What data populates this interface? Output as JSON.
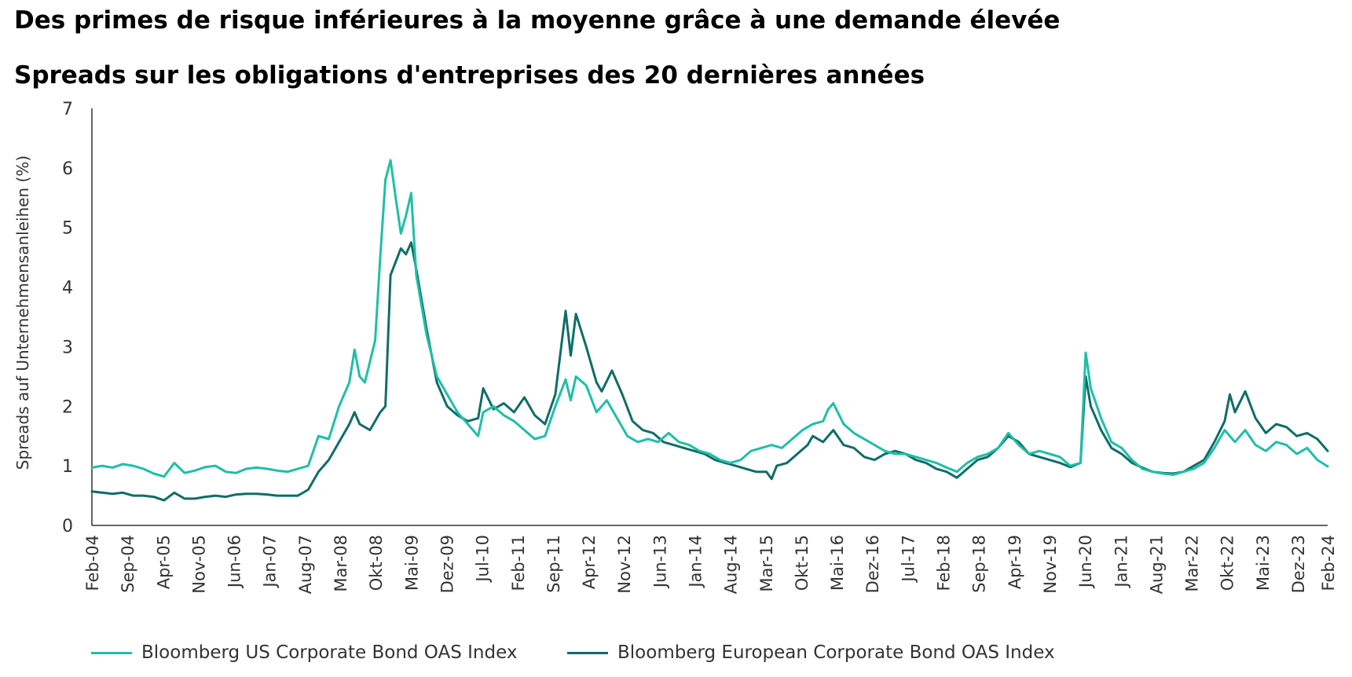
{
  "title": "Des primes de risque inférieures à la moyenne grâce à une demande élevée",
  "subtitle": "Spreads sur les obligations d'entreprises des 20 dernières années",
  "colors": {
    "us": "#1fbfa5",
    "eu": "#0f6d68",
    "axis": "#333333"
  },
  "chart_data": {
    "type": "line",
    "title": "Spreads sur les obligations d'entreprises des 20 dernières années",
    "ylabel": "Spreads auf Unternehmensanleihen (%)",
    "xlabel": "",
    "ylim": [
      0,
      7
    ],
    "yticks": [
      0,
      1,
      2,
      3,
      4,
      5,
      6,
      7
    ],
    "xlim": [
      "2004-02",
      "2024-02"
    ],
    "x_tick_labels": [
      "Feb-04",
      "Sep-04",
      "Apr-05",
      "Nov-05",
      "Jun-06",
      "Jan-07",
      "Aug-07",
      "Mar-08",
      "Okt-08",
      "Mai-09",
      "Dez-09",
      "Jul-10",
      "Feb-11",
      "Sep-11",
      "Apr-12",
      "Nov-12",
      "Jun-13",
      "Jan-14",
      "Aug-14",
      "Mar-15",
      "Okt-15",
      "Mai-16",
      "Dez-16",
      "Jul-17",
      "Feb-18",
      "Sep-18",
      "Apr-19",
      "Nov-19",
      "Jun-20",
      "Jan-21",
      "Aug-21",
      "Mar-22",
      "Okt-22",
      "Mai-23",
      "Dez-23",
      "Feb-24"
    ],
    "grid": false,
    "legend_position": "bottom",
    "series": [
      {
        "name": "Bloomberg US Corporate Bond OAS Index",
        "color": "#1fbfa5",
        "points": [
          [
            "2004-02",
            0.97
          ],
          [
            "2004-04",
            1.0
          ],
          [
            "2004-06",
            0.97
          ],
          [
            "2004-08",
            1.03
          ],
          [
            "2004-10",
            1.0
          ],
          [
            "2004-12",
            0.95
          ],
          [
            "2005-02",
            0.87
          ],
          [
            "2005-04",
            0.82
          ],
          [
            "2005-06",
            1.05
          ],
          [
            "2005-08",
            0.88
          ],
          [
            "2005-10",
            0.92
          ],
          [
            "2005-12",
            0.98
          ],
          [
            "2006-02",
            1.0
          ],
          [
            "2006-04",
            0.9
          ],
          [
            "2006-06",
            0.88
          ],
          [
            "2006-08",
            0.95
          ],
          [
            "2006-10",
            0.97
          ],
          [
            "2006-12",
            0.95
          ],
          [
            "2007-02",
            0.92
          ],
          [
            "2007-04",
            0.9
          ],
          [
            "2007-06",
            0.95
          ],
          [
            "2007-08",
            1.0
          ],
          [
            "2007-10",
            1.5
          ],
          [
            "2007-12",
            1.45
          ],
          [
            "2008-02",
            2.0
          ],
          [
            "2008-04",
            2.4
          ],
          [
            "2008-05",
            2.95
          ],
          [
            "2008-06",
            2.5
          ],
          [
            "2008-07",
            2.4
          ],
          [
            "2008-09",
            3.1
          ],
          [
            "2008-10",
            4.5
          ],
          [
            "2008-11",
            5.8
          ],
          [
            "2008-12",
            6.13
          ],
          [
            "2009-01",
            5.5
          ],
          [
            "2009-02",
            4.9
          ],
          [
            "2009-03",
            5.2
          ],
          [
            "2009-04",
            5.58
          ],
          [
            "2009-05",
            4.2
          ],
          [
            "2009-07",
            3.2
          ],
          [
            "2009-09",
            2.5
          ],
          [
            "2009-11",
            2.2
          ],
          [
            "2010-01",
            1.9
          ],
          [
            "2010-03",
            1.7
          ],
          [
            "2010-05",
            1.5
          ],
          [
            "2010-06",
            1.9
          ],
          [
            "2010-08",
            2.0
          ],
          [
            "2010-10",
            1.85
          ],
          [
            "2010-12",
            1.75
          ],
          [
            "2011-02",
            1.6
          ],
          [
            "2011-04",
            1.45
          ],
          [
            "2011-06",
            1.5
          ],
          [
            "2011-08",
            2.0
          ],
          [
            "2011-10",
            2.45
          ],
          [
            "2011-11",
            2.1
          ],
          [
            "2011-12",
            2.5
          ],
          [
            "2012-02",
            2.35
          ],
          [
            "2012-04",
            1.9
          ],
          [
            "2012-06",
            2.1
          ],
          [
            "2012-08",
            1.8
          ],
          [
            "2012-10",
            1.5
          ],
          [
            "2012-12",
            1.4
          ],
          [
            "2013-02",
            1.45
          ],
          [
            "2013-04",
            1.4
          ],
          [
            "2013-06",
            1.55
          ],
          [
            "2013-08",
            1.4
          ],
          [
            "2013-10",
            1.35
          ],
          [
            "2013-12",
            1.25
          ],
          [
            "2014-02",
            1.2
          ],
          [
            "2014-04",
            1.1
          ],
          [
            "2014-06",
            1.05
          ],
          [
            "2014-08",
            1.1
          ],
          [
            "2014-10",
            1.25
          ],
          [
            "2014-12",
            1.3
          ],
          [
            "2015-02",
            1.35
          ],
          [
            "2015-04",
            1.3
          ],
          [
            "2015-06",
            1.45
          ],
          [
            "2015-08",
            1.6
          ],
          [
            "2015-10",
            1.7
          ],
          [
            "2015-12",
            1.75
          ],
          [
            "2016-01",
            1.95
          ],
          [
            "2016-02",
            2.05
          ],
          [
            "2016-04",
            1.7
          ],
          [
            "2016-06",
            1.55
          ],
          [
            "2016-08",
            1.45
          ],
          [
            "2016-10",
            1.35
          ],
          [
            "2016-12",
            1.25
          ],
          [
            "2017-02",
            1.2
          ],
          [
            "2017-04",
            1.2
          ],
          [
            "2017-06",
            1.15
          ],
          [
            "2017-08",
            1.1
          ],
          [
            "2017-10",
            1.05
          ],
          [
            "2017-12",
            0.97
          ],
          [
            "2018-02",
            0.9
          ],
          [
            "2018-04",
            1.05
          ],
          [
            "2018-06",
            1.15
          ],
          [
            "2018-08",
            1.2
          ],
          [
            "2018-10",
            1.3
          ],
          [
            "2018-12",
            1.55
          ],
          [
            "2019-02",
            1.35
          ],
          [
            "2019-04",
            1.2
          ],
          [
            "2019-06",
            1.25
          ],
          [
            "2019-08",
            1.2
          ],
          [
            "2019-10",
            1.15
          ],
          [
            "2019-12",
            1.0
          ],
          [
            "2020-02",
            1.05
          ],
          [
            "2020-03",
            2.9
          ],
          [
            "2020-04",
            2.3
          ],
          [
            "2020-06",
            1.8
          ],
          [
            "2020-08",
            1.4
          ],
          [
            "2020-10",
            1.3
          ],
          [
            "2020-12",
            1.1
          ],
          [
            "2021-02",
            0.95
          ],
          [
            "2021-04",
            0.9
          ],
          [
            "2021-06",
            0.87
          ],
          [
            "2021-08",
            0.85
          ],
          [
            "2021-10",
            0.9
          ],
          [
            "2021-12",
            0.95
          ],
          [
            "2022-02",
            1.05
          ],
          [
            "2022-04",
            1.3
          ],
          [
            "2022-06",
            1.6
          ],
          [
            "2022-08",
            1.4
          ],
          [
            "2022-10",
            1.6
          ],
          [
            "2022-12",
            1.35
          ],
          [
            "2023-02",
            1.25
          ],
          [
            "2023-04",
            1.4
          ],
          [
            "2023-06",
            1.35
          ],
          [
            "2023-08",
            1.2
          ],
          [
            "2023-10",
            1.3
          ],
          [
            "2023-12",
            1.1
          ],
          [
            "2024-02",
            0.99
          ]
        ]
      },
      {
        "name": "Bloomberg European Corporate Bond OAS Index",
        "color": "#0f6d68",
        "points": [
          [
            "2004-02",
            0.57
          ],
          [
            "2004-04",
            0.55
          ],
          [
            "2004-06",
            0.53
          ],
          [
            "2004-08",
            0.55
          ],
          [
            "2004-10",
            0.5
          ],
          [
            "2004-12",
            0.5
          ],
          [
            "2005-02",
            0.48
          ],
          [
            "2005-04",
            0.42
          ],
          [
            "2005-06",
            0.55
          ],
          [
            "2005-08",
            0.45
          ],
          [
            "2005-10",
            0.45
          ],
          [
            "2005-12",
            0.48
          ],
          [
            "2006-02",
            0.5
          ],
          [
            "2006-04",
            0.48
          ],
          [
            "2006-06",
            0.52
          ],
          [
            "2006-08",
            0.53
          ],
          [
            "2006-10",
            0.53
          ],
          [
            "2006-12",
            0.52
          ],
          [
            "2007-02",
            0.5
          ],
          [
            "2007-04",
            0.5
          ],
          [
            "2007-06",
            0.5
          ],
          [
            "2007-08",
            0.6
          ],
          [
            "2007-10",
            0.9
          ],
          [
            "2007-12",
            1.1
          ],
          [
            "2008-02",
            1.4
          ],
          [
            "2008-04",
            1.7
          ],
          [
            "2008-05",
            1.9
          ],
          [
            "2008-06",
            1.7
          ],
          [
            "2008-08",
            1.6
          ],
          [
            "2008-10",
            1.9
          ],
          [
            "2008-11",
            2.0
          ],
          [
            "2008-12",
            4.2
          ],
          [
            "2009-02",
            4.65
          ],
          [
            "2009-03",
            4.55
          ],
          [
            "2009-04",
            4.75
          ],
          [
            "2009-05",
            4.3
          ],
          [
            "2009-07",
            3.3
          ],
          [
            "2009-09",
            2.4
          ],
          [
            "2009-11",
            2.0
          ],
          [
            "2010-01",
            1.85
          ],
          [
            "2010-03",
            1.75
          ],
          [
            "2010-05",
            1.8
          ],
          [
            "2010-06",
            2.3
          ],
          [
            "2010-08",
            1.95
          ],
          [
            "2010-10",
            2.05
          ],
          [
            "2010-12",
            1.9
          ],
          [
            "2011-02",
            2.15
          ],
          [
            "2011-04",
            1.85
          ],
          [
            "2011-06",
            1.7
          ],
          [
            "2011-08",
            2.2
          ],
          [
            "2011-10",
            3.6
          ],
          [
            "2011-11",
            2.85
          ],
          [
            "2011-12",
            3.55
          ],
          [
            "2012-02",
            3.0
          ],
          [
            "2012-04",
            2.4
          ],
          [
            "2012-05",
            2.25
          ],
          [
            "2012-07",
            2.6
          ],
          [
            "2012-09",
            2.2
          ],
          [
            "2012-11",
            1.75
          ],
          [
            "2013-01",
            1.6
          ],
          [
            "2013-03",
            1.55
          ],
          [
            "2013-05",
            1.4
          ],
          [
            "2013-07",
            1.35
          ],
          [
            "2013-09",
            1.3
          ],
          [
            "2013-11",
            1.25
          ],
          [
            "2014-01",
            1.2
          ],
          [
            "2014-03",
            1.1
          ],
          [
            "2014-05",
            1.05
          ],
          [
            "2014-07",
            1.0
          ],
          [
            "2014-09",
            0.95
          ],
          [
            "2014-11",
            0.9
          ],
          [
            "2015-01",
            0.9
          ],
          [
            "2015-02",
            0.78
          ],
          [
            "2015-03",
            1.0
          ],
          [
            "2015-05",
            1.05
          ],
          [
            "2015-07",
            1.2
          ],
          [
            "2015-09",
            1.35
          ],
          [
            "2015-10",
            1.5
          ],
          [
            "2015-12",
            1.4
          ],
          [
            "2016-02",
            1.6
          ],
          [
            "2016-04",
            1.35
          ],
          [
            "2016-06",
            1.3
          ],
          [
            "2016-08",
            1.15
          ],
          [
            "2016-10",
            1.1
          ],
          [
            "2016-12",
            1.2
          ],
          [
            "2017-02",
            1.25
          ],
          [
            "2017-04",
            1.2
          ],
          [
            "2017-06",
            1.1
          ],
          [
            "2017-08",
            1.05
          ],
          [
            "2017-10",
            0.95
          ],
          [
            "2017-12",
            0.9
          ],
          [
            "2018-02",
            0.8
          ],
          [
            "2018-04",
            0.95
          ],
          [
            "2018-06",
            1.1
          ],
          [
            "2018-08",
            1.15
          ],
          [
            "2018-10",
            1.3
          ],
          [
            "2018-12",
            1.5
          ],
          [
            "2019-02",
            1.4
          ],
          [
            "2019-04",
            1.2
          ],
          [
            "2019-06",
            1.15
          ],
          [
            "2019-08",
            1.1
          ],
          [
            "2019-10",
            1.05
          ],
          [
            "2019-12",
            0.98
          ],
          [
            "2020-02",
            1.05
          ],
          [
            "2020-03",
            2.5
          ],
          [
            "2020-04",
            2.0
          ],
          [
            "2020-06",
            1.6
          ],
          [
            "2020-08",
            1.3
          ],
          [
            "2020-10",
            1.2
          ],
          [
            "2020-12",
            1.05
          ],
          [
            "2021-02",
            0.97
          ],
          [
            "2021-04",
            0.9
          ],
          [
            "2021-06",
            0.88
          ],
          [
            "2021-08",
            0.87
          ],
          [
            "2021-10",
            0.9
          ],
          [
            "2021-12",
            1.0
          ],
          [
            "2022-02",
            1.1
          ],
          [
            "2022-04",
            1.4
          ],
          [
            "2022-06",
            1.75
          ],
          [
            "2022-07",
            2.2
          ],
          [
            "2022-08",
            1.9
          ],
          [
            "2022-10",
            2.25
          ],
          [
            "2022-12",
            1.8
          ],
          [
            "2023-02",
            1.55
          ],
          [
            "2023-04",
            1.7
          ],
          [
            "2023-06",
            1.65
          ],
          [
            "2023-08",
            1.5
          ],
          [
            "2023-10",
            1.55
          ],
          [
            "2023-12",
            1.45
          ],
          [
            "2024-02",
            1.25
          ]
        ]
      }
    ]
  }
}
